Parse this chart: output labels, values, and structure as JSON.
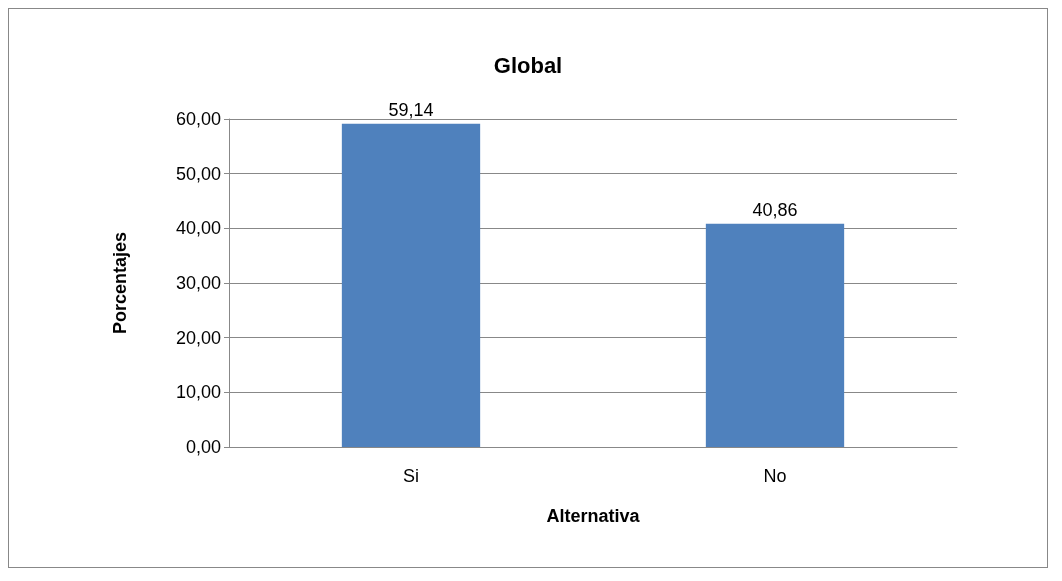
{
  "chart_data": {
    "type": "bar",
    "title": "Global",
    "xlabel": "Alternativa",
    "ylabel": "Porcentajes",
    "categories": [
      "Si",
      "No"
    ],
    "values": [
      59.14,
      40.86
    ],
    "value_labels": [
      "59,14",
      "40,86"
    ],
    "color": "#4f81bd",
    "ylim": [
      0,
      60
    ],
    "yticks": [
      {
        "value": 0,
        "label": "0,00"
      },
      {
        "value": 10,
        "label": "10,00"
      },
      {
        "value": 20,
        "label": "20,00"
      },
      {
        "value": 30,
        "label": "30,00"
      },
      {
        "value": 40,
        "label": "40,00"
      },
      {
        "value": 50,
        "label": "50,00"
      },
      {
        "value": 60,
        "label": "60,00"
      }
    ],
    "grid": true
  }
}
